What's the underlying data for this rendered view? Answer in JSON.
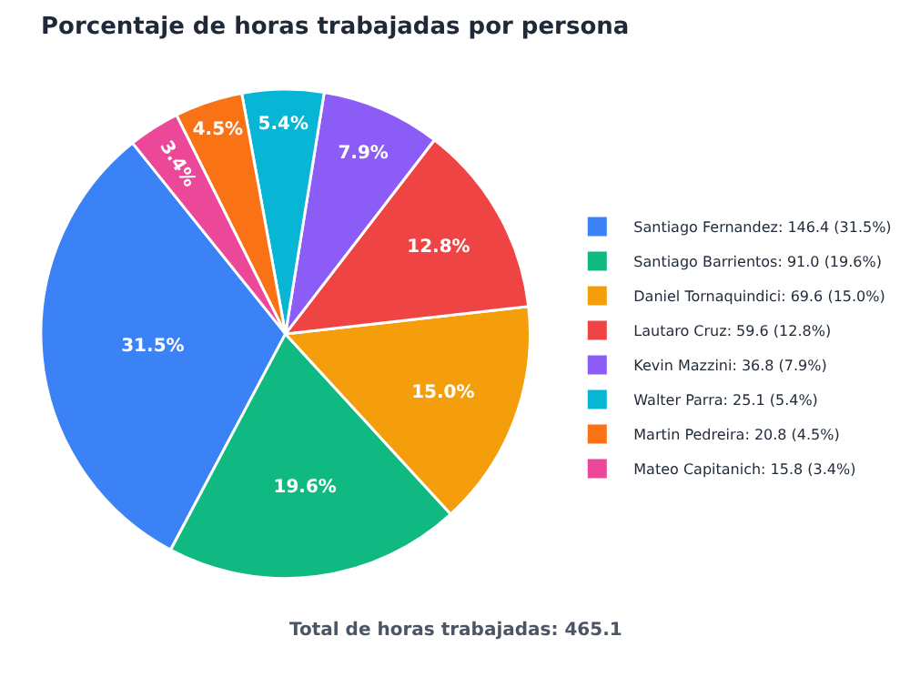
{
  "chart_data": {
    "type": "pie",
    "title": "Porcentaje de horas trabajadas por persona",
    "categories": [
      "Santiago Fernandez: 146.4 (31.5%)",
      "Santiago Barrientos: 91.0 (19.6%)",
      "Daniel Tornaquindici: 69.6 (15.0%)",
      "Lautaro Cruz: 59.6 (12.8%)",
      "Kevin Mazzini: 36.8 (7.9%)",
      "Walter Parra: 25.1 (5.4%)",
      "Martin Pedreira: 20.8 (4.5%)",
      "Mateo Capitanich: 15.8 (3.4%)"
    ],
    "values": [
      31.5,
      19.6,
      15.0,
      12.8,
      7.9,
      5.4,
      4.5,
      3.4
    ],
    "value_labels": [
      "31.5%",
      "19.6%",
      "15.0%",
      "12.8%",
      "7.9%",
      "5.4%",
      "4.5%",
      "3.4%"
    ],
    "colors": [
      "#3b82f6",
      "#10b981",
      "#f59e0b",
      "#ef4444",
      "#8b5cf6",
      "#06b6d4",
      "#f97316",
      "#ec4899"
    ],
    "legend": "right",
    "annotations": [
      "Total de horas trabajadas: 465.1"
    ]
  }
}
